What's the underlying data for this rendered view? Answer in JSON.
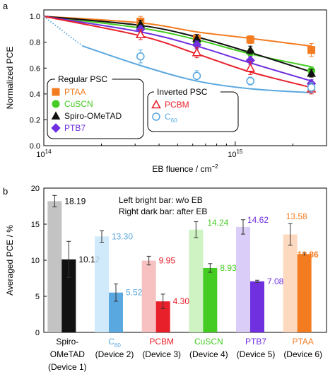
{
  "colors": {
    "PTAA": "#f47c20",
    "CuSCN": "#44cc22",
    "Spiro-OMeTAD": "#111111",
    "PTB7": "#7030e0",
    "PCBM": "#e8202a",
    "C60": "#5aa8e0"
  },
  "chart_data": [
    {
      "type": "line",
      "panel_label": "a",
      "xlabel": "EB fluence / cm",
      "xlabel_sup": "−2",
      "ylabel": "Normalized PCE",
      "xscale": "log",
      "xlim": [
        100000000000000.0,
        3000000000000000.0
      ],
      "ylim": [
        0,
        1.05
      ],
      "x_ticks": [
        {
          "value": 100000000000000.0,
          "base": "10",
          "exp": "14"
        },
        {
          "value": 1000000000000000.0,
          "base": "10",
          "exp": "15"
        }
      ],
      "y_ticks": [
        "0.0",
        "0.2",
        "0.4",
        "0.6",
        "0.8",
        "1.0"
      ],
      "legend_regular": {
        "title": "Regular PSC",
        "entries": [
          {
            "series": "PTAA",
            "label": "PTAA",
            "marker": "square-filled"
          },
          {
            "series": "CuSCN",
            "label": "CuSCN",
            "marker": "circle-filled"
          },
          {
            "series": "Spiro-OMeTAD",
            "label": "Spiro-OMeTAD",
            "marker": "triangle-filled"
          },
          {
            "series": "PTB7",
            "label": "PTB7",
            "marker": "diamond-filled"
          }
        ]
      },
      "legend_inverted": {
        "title": "Inverted  PSC",
        "entries": [
          {
            "series": "PCBM",
            "label": "PCBM",
            "marker": "triangle-open"
          },
          {
            "series": "C60",
            "label": "C",
            "label_sub": "60",
            "marker": "circle-open"
          }
        ]
      },
      "series": [
        {
          "name": "PTAA",
          "marker": "square-filled",
          "x": [
            320000000000000.0,
            630000000000000.0,
            1200000000000000.0,
            2500000000000000.0
          ],
          "y": [
            0.96,
            0.83,
            0.82,
            0.74
          ],
          "err": [
            0.04,
            0.03,
            0.03,
            0.05
          ],
          "fit": {
            "x": [
              100000000000000.0,
              320000000000000.0,
              630000000000000.0,
              1200000000000000.0,
              2500000000000000.0
            ],
            "y": [
              1.0,
              0.95,
              0.88,
              0.83,
              0.77
            ]
          }
        },
        {
          "name": "CuSCN",
          "marker": "circle-filled",
          "x": [
            320000000000000.0,
            630000000000000.0,
            1200000000000000.0,
            2500000000000000.0
          ],
          "y": [
            0.92,
            0.8,
            0.72,
            0.58
          ],
          "err": [
            0.03,
            0.03,
            0.03,
            0.03
          ],
          "fit": {
            "x": [
              100000000000000.0,
              320000000000000.0,
              630000000000000.0,
              1200000000000000.0,
              2500000000000000.0
            ],
            "y": [
              1.0,
              0.91,
              0.82,
              0.71,
              0.61
            ]
          }
        },
        {
          "name": "Spiro-OMeTAD",
          "marker": "triangle-filled",
          "x": [
            320000000000000.0,
            630000000000000.0,
            1200000000000000.0,
            2500000000000000.0
          ],
          "y": [
            0.94,
            0.83,
            0.74,
            0.56
          ],
          "err": [
            0.03,
            0.03,
            0.03,
            0.03
          ],
          "fit": {
            "x": [
              100000000000000.0,
              320000000000000.0,
              630000000000000.0,
              1200000000000000.0,
              2500000000000000.0
            ],
            "y": [
              1.0,
              0.93,
              0.84,
              0.72,
              0.57
            ]
          }
        },
        {
          "name": "PTB7",
          "marker": "diamond-filled",
          "x": [
            320000000000000.0,
            630000000000000.0,
            1200000000000000.0,
            2500000000000000.0
          ],
          "y": [
            0.9,
            0.78,
            0.66,
            0.48
          ],
          "err": [
            0.03,
            0.03,
            0.03,
            0.03
          ],
          "fit": {
            "x": [
              100000000000000.0,
              320000000000000.0,
              630000000000000.0,
              1200000000000000.0,
              2500000000000000.0
            ],
            "y": [
              1.0,
              0.88,
              0.77,
              0.64,
              0.5
            ]
          }
        },
        {
          "name": "PCBM",
          "marker": "triangle-open",
          "x": [
            320000000000000.0,
            630000000000000.0,
            1200000000000000.0,
            2500000000000000.0
          ],
          "y": [
            0.86,
            0.72,
            0.6,
            0.44
          ],
          "err": [
            0.04,
            0.04,
            0.05,
            0.04
          ],
          "fit": {
            "x": [
              100000000000000.0,
              320000000000000.0,
              630000000000000.0,
              1200000000000000.0,
              2500000000000000.0
            ],
            "y": [
              1.0,
              0.85,
              0.71,
              0.57,
              0.45
            ]
          }
        },
        {
          "name": "C60",
          "marker": "circle-open",
          "x": [
            320000000000000.0,
            630000000000000.0,
            1200000000000000.0,
            2500000000000000.0
          ],
          "y": [
            0.69,
            0.54,
            0.5,
            0.45
          ],
          "err": [
            0.05,
            0.04,
            0.03,
            0.04
          ],
          "fit_dotted": {
            "x": [
              100000000000000.0,
              130000000000000.0,
              160000000000000.0
            ],
            "y": [
              1.0,
              0.87,
              0.77
            ]
          },
          "fit": {
            "x": [
              160000000000000.0,
              320000000000000.0,
              630000000000000.0,
              1200000000000000.0,
              2500000000000000.0
            ],
            "y": [
              0.77,
              0.62,
              0.5,
              0.44,
              0.41
            ]
          }
        }
      ]
    },
    {
      "type": "bar",
      "panel_label": "b",
      "ylabel": "Averaged PCE / %",
      "ylim": [
        0,
        20
      ],
      "y_ticks": [
        "0",
        "5",
        "10",
        "15",
        "20"
      ],
      "notes": [
        "Left bright bar: w/o EB",
        "Right dark bar: after EB"
      ],
      "categories": [
        {
          "series": "Spiro-OMeTAD",
          "lines": [
            "Spiro-",
            "OMeTAD",
            "(Device 1)"
          ]
        },
        {
          "series": "C60",
          "lines": [
            "C",
            "(Device 2)"
          ],
          "sub": "60"
        },
        {
          "series": "PCBM",
          "lines": [
            "PCBM",
            "(Device 3)"
          ]
        },
        {
          "series": "CuSCN",
          "lines": [
            "CuSCN",
            "(Device 4)"
          ]
        },
        {
          "series": "PTB7",
          "lines": [
            "PTB7",
            "(Device 5)"
          ]
        },
        {
          "series": "PTAA",
          "lines": [
            "PTAA",
            "(Device 6)"
          ]
        }
      ],
      "series": [
        {
          "name": "w/o EB",
          "values": [
            18.19,
            13.3,
            9.95,
            14.24,
            14.62,
            13.58
          ],
          "err": [
            0.8,
            0.8,
            0.6,
            1.1,
            1.0,
            1.5
          ],
          "labels": [
            "18.19",
            "13.30",
            "9.95",
            "14.24",
            "14.62",
            "13.58"
          ]
        },
        {
          "name": "after EB",
          "values": [
            10.12,
            5.52,
            4.3,
            8.93,
            7.08,
            10.86
          ],
          "err": [
            2.5,
            1.2,
            1.0,
            0.6,
            0.15,
            0.15
          ],
          "labels": [
            "10.12",
            "5.52",
            "4.30",
            "8.93",
            "7.08",
            "10.86"
          ]
        }
      ]
    }
  ]
}
